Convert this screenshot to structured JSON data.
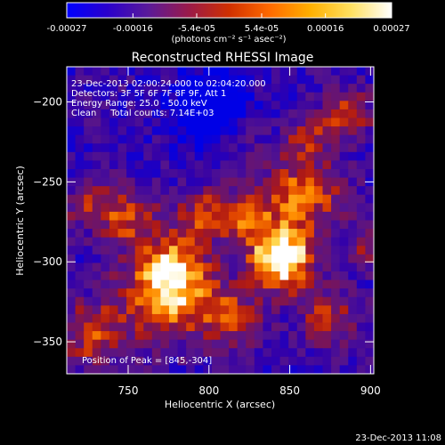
{
  "chart_data": {
    "type": "heatmap",
    "title": "Reconstructed RHESSI Image",
    "xlabel": "Heliocentric X (arcsec)",
    "ylabel": "Heliocentric Y (arcsec)",
    "xlim": [
      712,
      902
    ],
    "ylim": [
      -370,
      -178
    ],
    "x_ticks": [
      750,
      800,
      850,
      900
    ],
    "y_ticks": [
      -200,
      -250,
      -300,
      -350
    ],
    "grid": false,
    "colorbar": {
      "range": [
        -0.00027,
        0.00027
      ],
      "tick_values": [
        -0.00027,
        -0.00016,
        -5.4e-05,
        5.4e-05,
        0.00016,
        0.00027
      ],
      "tick_labels": [
        "-0.00027",
        "-0.00016",
        "-5.4e-05",
        "5.4e-05",
        "0.00016",
        "0.00027"
      ],
      "units": "(photons cm⁻² s⁻¹ asec⁻²)",
      "colors": [
        "#0000ff",
        "#2a00cc",
        "#5a1a9a",
        "#9a1a4a",
        "#d03000",
        "#ff6a00",
        "#ffb000",
        "#ffe060",
        "#ffffff"
      ]
    },
    "info_lines": [
      "23-Dec-2013 02:00:24.000 to 02:04:20.000",
      "Detectors: 3F 5F 6F 7F 8F 9F, Att 1",
      "Energy Range: 25.0 - 50.0 keV",
      "Clean     Total counts: 7.14E+03"
    ],
    "peak_label": "Position of Peak = [845,-304]",
    "peak": [
      845,
      -304
    ],
    "sources": [
      {
        "x": 845,
        "y": -298,
        "sigma": 13,
        "amp": 1.0
      },
      {
        "x": 775,
        "y": -318,
        "sigma": 20,
        "amp": 0.72
      },
      {
        "x": 778,
        "y": -300,
        "sigma": 12,
        "amp": 0.3
      },
      {
        "x": 858,
        "y": -258,
        "sigma": 17,
        "amp": 0.55
      },
      {
        "x": 822,
        "y": -272,
        "sigma": 12,
        "amp": 0.45
      },
      {
        "x": 795,
        "y": -270,
        "sigma": 11,
        "amp": 0.4
      },
      {
        "x": 750,
        "y": -272,
        "sigma": 12,
        "amp": 0.45
      },
      {
        "x": 885,
        "y": -208,
        "sigma": 11,
        "amp": 0.45
      },
      {
        "x": 860,
        "y": -222,
        "sigma": 9,
        "amp": 0.35
      },
      {
        "x": 728,
        "y": -345,
        "sigma": 14,
        "amp": 0.45
      },
      {
        "x": 815,
        "y": -335,
        "sigma": 13,
        "amp": 0.4
      },
      {
        "x": 875,
        "y": -335,
        "sigma": 13,
        "amp": 0.4
      },
      {
        "x": 725,
        "y": -265,
        "sigma": 10,
        "amp": 0.35
      },
      {
        "x": 820,
        "y": -220,
        "sigma": 9,
        "amp": 0.2
      },
      {
        "x": 898,
        "y": -290,
        "sigma": 9,
        "amp": 0.3
      }
    ],
    "negative_region": {
      "x": 800,
      "y": -203,
      "sigma": 15,
      "amp": -0.55
    }
  },
  "footer_timestamp": "23-Dec-2013 11:08"
}
